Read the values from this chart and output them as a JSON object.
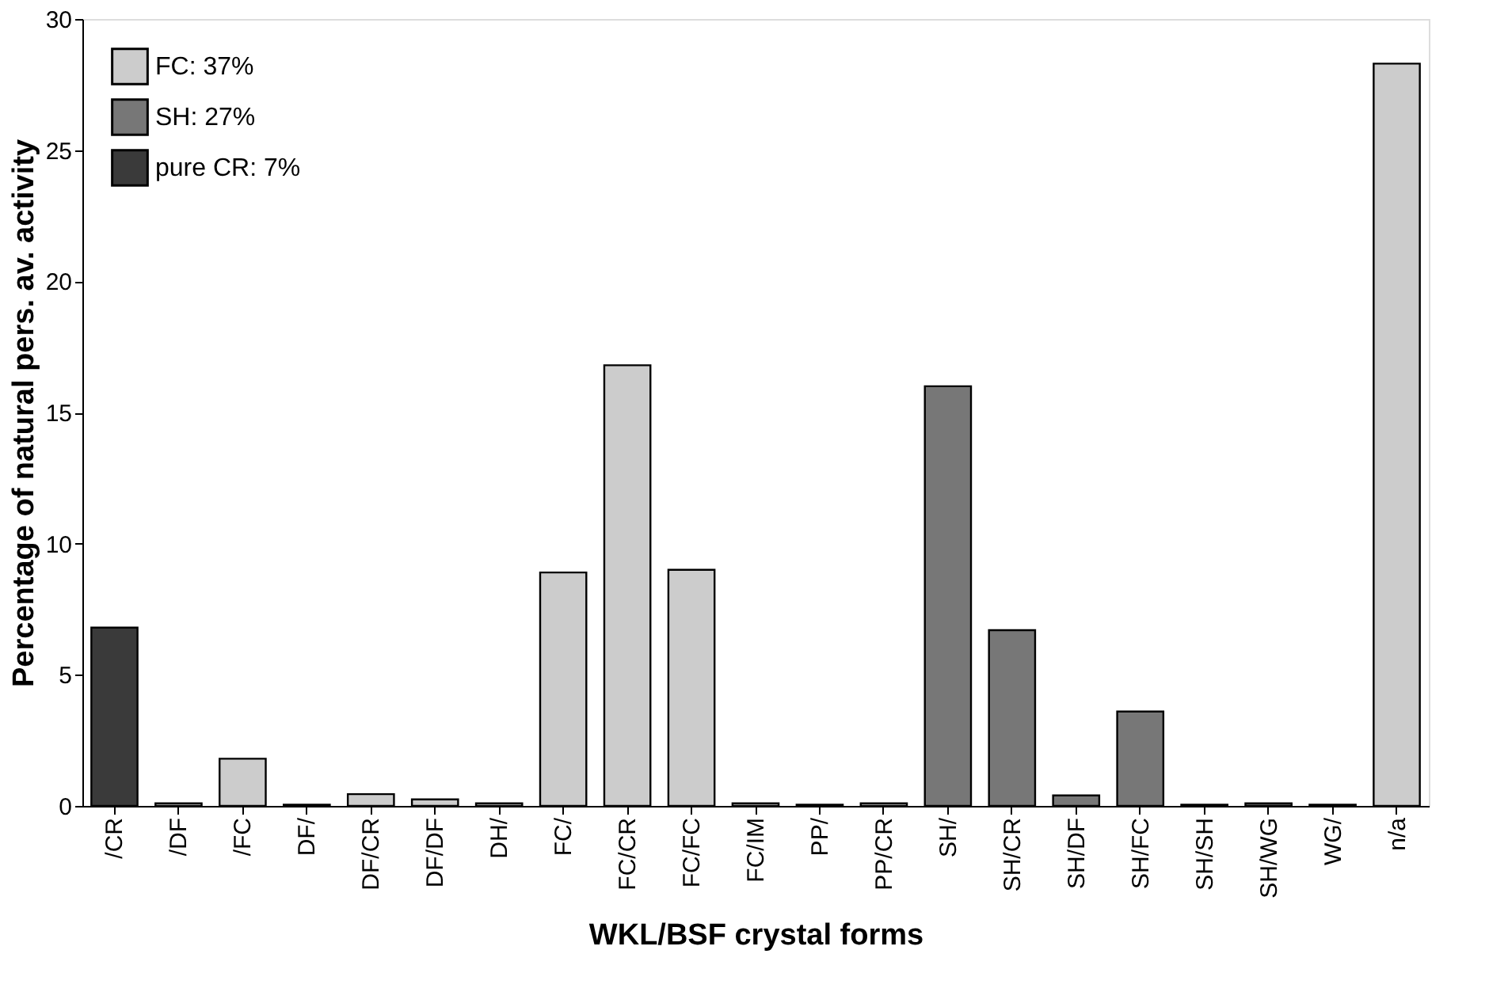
{
  "chart_data": {
    "type": "bar",
    "xlabel": "WKL/BSF crystal forms",
    "ylabel": "Percentage of natural pers. av. activity",
    "categories": [
      "/CR",
      "/DF",
      "/FC",
      "DF/",
      "DF/CR",
      "DF/DF",
      "DH/",
      "FC/",
      "FC/CR",
      "FC/FC",
      "FC/IM",
      "PP/",
      "PP/CR",
      "SH/",
      "SH/CR",
      "SH/DF",
      "SH/FC",
      "SH/SH",
      "SH/WG",
      "WG/",
      "n/a"
    ],
    "series": [
      {
        "name": "FC: 37%",
        "color": "#cccccc",
        "values": [
          null,
          0.1,
          1.8,
          0.05,
          0.45,
          0.25,
          0.1,
          8.9,
          16.8,
          9.0,
          0.1,
          0.05,
          0.1,
          null,
          null,
          null,
          null,
          null,
          null,
          0.05,
          28.3
        ]
      },
      {
        "name": "SH: 27%",
        "color": "#777777",
        "values": [
          null,
          null,
          null,
          null,
          null,
          null,
          null,
          null,
          null,
          null,
          null,
          null,
          null,
          16.0,
          6.7,
          0.4,
          3.6,
          0.05,
          0.1,
          null,
          null
        ]
      },
      {
        "name": "pure CR: 7%",
        "color": "#3a3a3a",
        "values": [
          6.8,
          null,
          null,
          null,
          null,
          null,
          null,
          null,
          null,
          null,
          null,
          null,
          null,
          null,
          null,
          null,
          null,
          null,
          null,
          null,
          null
        ]
      }
    ],
    "ylim": [
      0,
      30
    ],
    "yticks": [
      0,
      5,
      10,
      15,
      20,
      25,
      30
    ],
    "grid": false,
    "legend": "top left"
  }
}
